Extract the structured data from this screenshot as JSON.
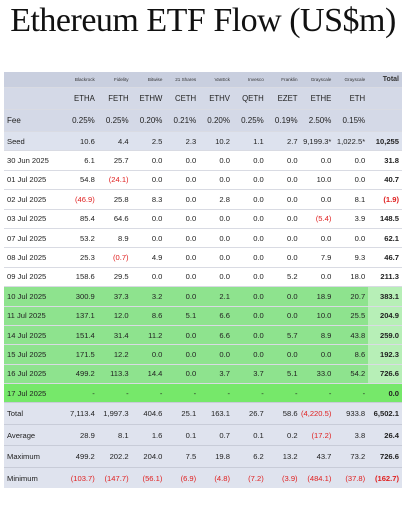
{
  "title": "Ethereum ETF Flow (US$m)",
  "issuers": [
    "Blackrock",
    "Fidelity",
    "Bitwise",
    "21 Shares",
    "VanEck",
    "Invesco",
    "Franklin",
    "Grayscale",
    "Grayscale",
    "Total"
  ],
  "tickers": [
    "ETHA",
    "FETH",
    "ETHW",
    "CETH",
    "ETHV",
    "QETH",
    "EZET",
    "ETHE",
    "ETH",
    ""
  ],
  "fee_label": "Fee",
  "fees": [
    "0.25%",
    "0.25%",
    "0.20%",
    "0.21%",
    "0.20%",
    "0.25%",
    "0.19%",
    "2.50%",
    "0.15%",
    ""
  ],
  "rows": [
    {
      "label": "Seed",
      "values": [
        "10.6",
        "4.4",
        "2.5",
        "2.3",
        "10.2",
        "1.1",
        "2.7",
        "9,199.3*",
        "1,022.5*",
        "10,255"
      ]
    },
    {
      "label": "30 Jun 2025",
      "values": [
        "6.1",
        "25.7",
        "0.0",
        "0.0",
        "0.0",
        "0.0",
        "0.0",
        "0.0",
        "0.0",
        "31.8"
      ]
    },
    {
      "label": "01 Jul 2025",
      "values": [
        "54.8",
        "(24.1)",
        "0.0",
        "0.0",
        "0.0",
        "0.0",
        "0.0",
        "10.0",
        "0.0",
        "40.7"
      ]
    },
    {
      "label": "02 Jul 2025",
      "values": [
        "(46.9)",
        "25.8",
        "8.3",
        "0.0",
        "2.8",
        "0.0",
        "0.0",
        "0.0",
        "8.1",
        "(1.9)"
      ]
    },
    {
      "label": "03 Jul 2025",
      "values": [
        "85.4",
        "64.6",
        "0.0",
        "0.0",
        "0.0",
        "0.0",
        "0.0",
        "(5.4)",
        "3.9",
        "148.5"
      ]
    },
    {
      "label": "07 Jul 2025",
      "values": [
        "53.2",
        "8.9",
        "0.0",
        "0.0",
        "0.0",
        "0.0",
        "0.0",
        "0.0",
        "0.0",
        "62.1"
      ]
    },
    {
      "label": "08 Jul 2025",
      "values": [
        "25.3",
        "(0.7)",
        "4.9",
        "0.0",
        "0.0",
        "0.0",
        "0.0",
        "7.9",
        "9.3",
        "46.7"
      ]
    },
    {
      "label": "09 Jul 2025",
      "values": [
        "158.6",
        "29.5",
        "0.0",
        "0.0",
        "0.0",
        "0.0",
        "5.2",
        "0.0",
        "18.0",
        "211.3"
      ]
    },
    {
      "label": "10 Jul 2025",
      "values": [
        "300.9",
        "37.3",
        "3.2",
        "0.0",
        "2.1",
        "0.0",
        "0.0",
        "18.9",
        "20.7",
        "383.1"
      ]
    },
    {
      "label": "11 Jul 2025",
      "values": [
        "137.1",
        "12.0",
        "8.6",
        "5.1",
        "6.6",
        "0.0",
        "0.0",
        "10.0",
        "25.5",
        "204.9"
      ]
    },
    {
      "label": "14 Jul 2025",
      "values": [
        "151.4",
        "31.4",
        "11.2",
        "0.0",
        "6.6",
        "0.0",
        "5.7",
        "8.9",
        "43.8",
        "259.0"
      ]
    },
    {
      "label": "15 Jul 2025",
      "values": [
        "171.5",
        "12.2",
        "0.0",
        "0.0",
        "0.0",
        "0.0",
        "0.0",
        "0.0",
        "8.6",
        "192.3"
      ]
    },
    {
      "label": "16 Jul 2025",
      "values": [
        "499.2",
        "113.3",
        "14.4",
        "0.0",
        "3.7",
        "3.7",
        "5.1",
        "33.0",
        "54.2",
        "726.6"
      ]
    },
    {
      "label": "17 Jul 2025",
      "values": [
        "-",
        "-",
        "-",
        "-",
        "-",
        "-",
        "-",
        "-",
        "-",
        "0.0"
      ]
    }
  ],
  "summary": [
    {
      "label": "Total",
      "values": [
        "7,113.4",
        "1,997.3",
        "404.6",
        "25.1",
        "163.1",
        "26.7",
        "58.6",
        "(4,220.5)",
        "933.8",
        "6,502.1"
      ]
    },
    {
      "label": "Average",
      "values": [
        "28.9",
        "8.1",
        "1.6",
        "0.1",
        "0.7",
        "0.1",
        "0.2",
        "(17.2)",
        "3.8",
        "26.4"
      ]
    },
    {
      "label": "Maximum",
      "values": [
        "499.2",
        "202.2",
        "204.0",
        "7.5",
        "19.8",
        "6.2",
        "13.2",
        "43.7",
        "73.2",
        "726.6"
      ]
    },
    {
      "label": "Minimum",
      "values": [
        "(103.7)",
        "(147.7)",
        "(56.1)",
        "(6.9)",
        "(4.8)",
        "(7.2)",
        "(3.9)",
        "(484.1)",
        "(37.8)",
        "(162.7)"
      ]
    }
  ],
  "chart_data": {
    "type": "table",
    "title": "Ethereum ETF Flow (US$m)",
    "columns": [
      "ETHA",
      "FETH",
      "ETHW",
      "CETH",
      "ETHV",
      "QETH",
      "EZET",
      "ETHE",
      "ETH",
      "Total"
    ],
    "highlighted_rows": [
      "10 Jul 2025",
      "11 Jul 2025",
      "14 Jul 2025",
      "15 Jul 2025",
      "16 Jul 2025",
      "17 Jul 2025"
    ],
    "colors": {
      "header": "#c9cfdf",
      "subheader": "#d4d9e7",
      "highlight": "#8ee38e",
      "negative": "#e02020"
    }
  }
}
